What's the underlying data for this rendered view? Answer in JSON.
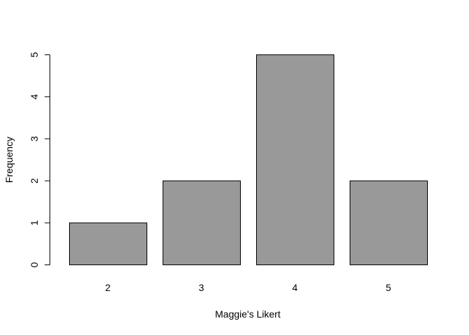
{
  "chart_data": {
    "type": "bar",
    "title": "",
    "xlabel": "Maggie's Likert",
    "ylabel": "Frequency",
    "categories": [
      "2",
      "3",
      "4",
      "5"
    ],
    "values": [
      1,
      2,
      5,
      2
    ],
    "ylim": [
      0,
      5
    ],
    "yticks": [
      "0",
      "1",
      "2",
      "3",
      "4",
      "5"
    ],
    "grid": false,
    "legend": "none",
    "bar_color": "#999999",
    "bar_border_color": "#000000"
  }
}
